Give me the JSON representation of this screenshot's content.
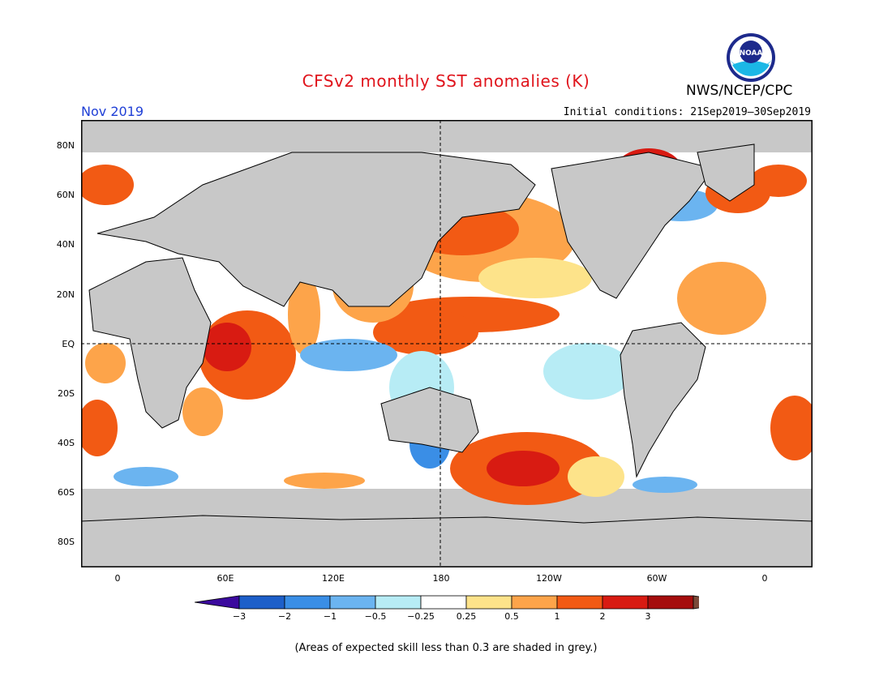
{
  "header": {
    "title": "CFSv2 monthly SST anomalies (K)",
    "month": "Nov 2019",
    "initial_conditions": "Initial conditions: 21Sep2019–30Sep2019",
    "agency": "NWS/NCEP/CPC",
    "logo_text": "NOAA"
  },
  "axes": {
    "lat_labels": [
      "80N",
      "60N",
      "40N",
      "20N",
      "EQ",
      "20S",
      "40S",
      "60S",
      "80S"
    ],
    "lon_labels": [
      "0",
      "60E",
      "120E",
      "180",
      "120W",
      "60W",
      "0"
    ]
  },
  "colorbar": {
    "labels": [
      "−3",
      "−2",
      "−1",
      "−0.5",
      "−0.25",
      "0.25",
      "0.5",
      "1",
      "2",
      "3"
    ],
    "colors": [
      "#3b0a9e",
      "#1d5fc9",
      "#3a8ee6",
      "#6bb4f0",
      "#b7ecf5",
      "#ffffff",
      "#fde38a",
      "#fda44a",
      "#f25a14",
      "#d81b12",
      "#a50d0d",
      "#7a4a3a"
    ]
  },
  "colors": {
    "land": "#c8c8c8",
    "low_skill": "#c8c8c8",
    "title": "#e0141c",
    "month": "#1f3fd6"
  },
  "footnote": "(Areas of expected skill less than 0.3 are shaded in grey.)"
}
